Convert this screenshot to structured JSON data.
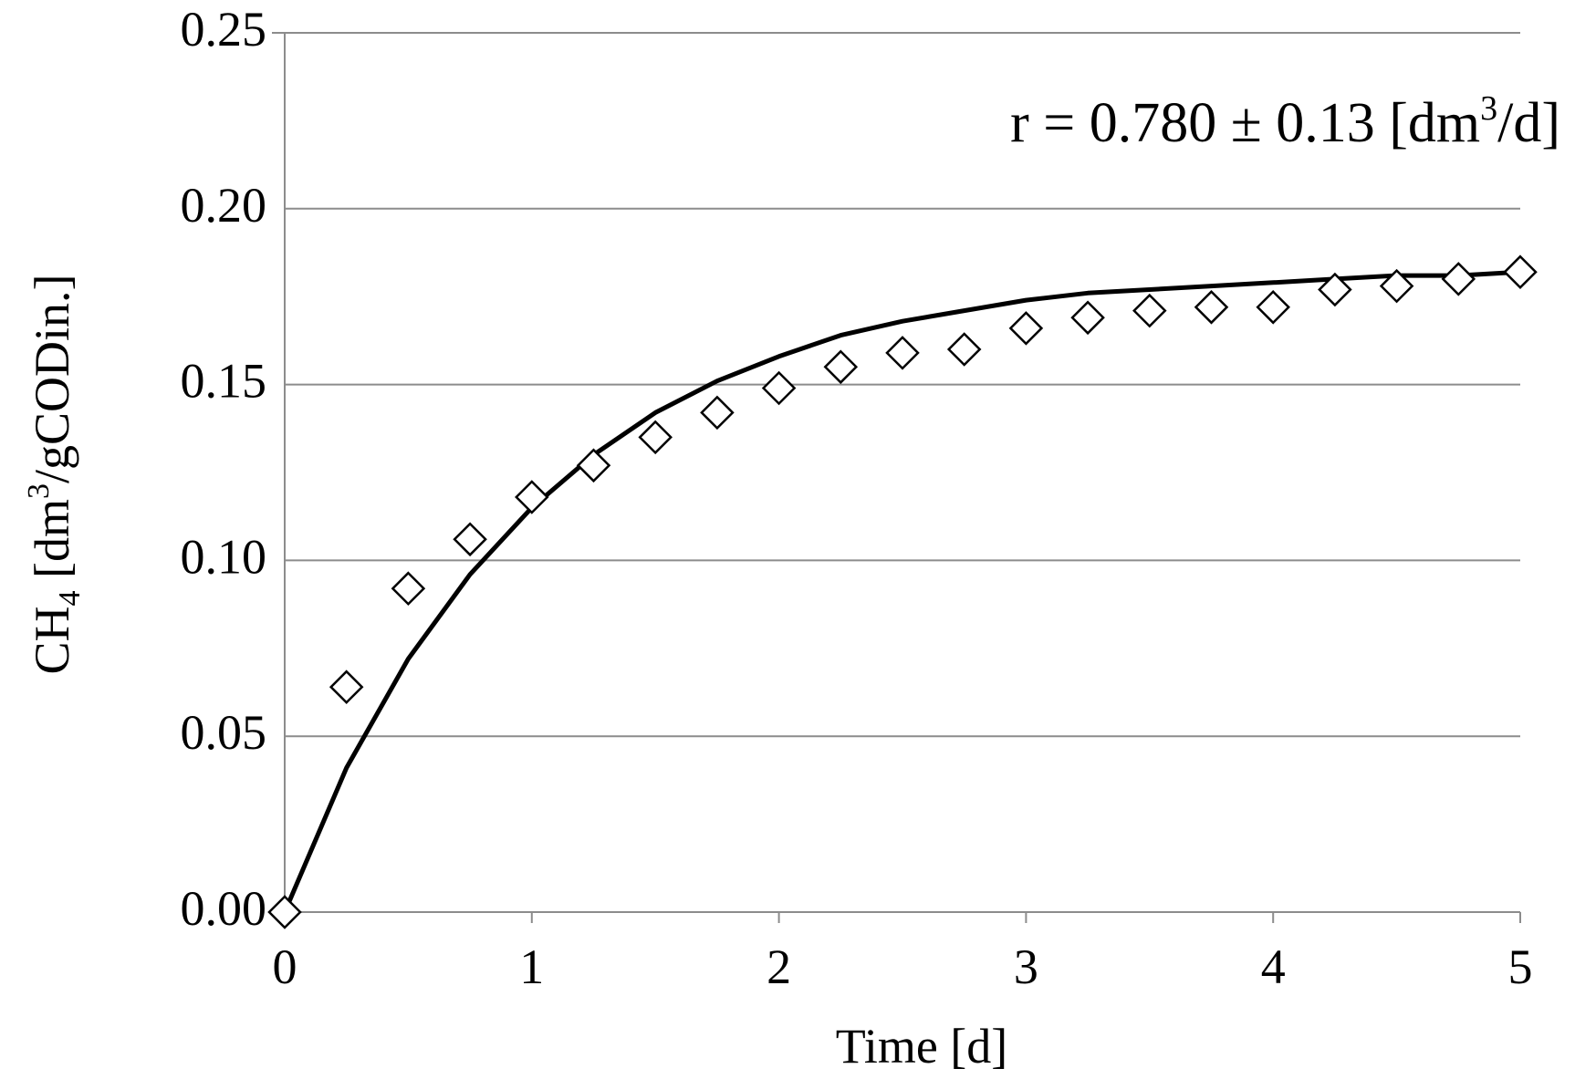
{
  "chart_data": {
    "type": "scatter",
    "xlim": [
      0,
      5
    ],
    "ylim": [
      0,
      0.25
    ],
    "x_ticks": [
      "0",
      "1",
      "2",
      "3",
      "4",
      "5"
    ],
    "x_tick_values": [
      0,
      1,
      2,
      3,
      4,
      5
    ],
    "y_ticks": [
      "0.00",
      "0.05",
      "0.10",
      "0.15",
      "0.20",
      "0.25"
    ],
    "y_tick_values": [
      0,
      0.05,
      0.1,
      0.15,
      0.2,
      0.25
    ],
    "xlabel": "Time [d]",
    "ylabel": {
      "prefix": "CH",
      "subscript": "4",
      "middle": " [dm",
      "superscript": "3",
      "suffix": "/gCODin.]"
    },
    "annotation": {
      "prefix": "r = 0.780 ± 0.13 [dm",
      "superscript": "3",
      "suffix": "/d]"
    },
    "grid": "horizontal",
    "colors": {
      "grid": "#8c8c8c",
      "line": "#000000",
      "marker_stroke": "#000000",
      "marker_fill": "#ffffff"
    },
    "series": [
      {
        "kind": "points",
        "marker": "diamond",
        "x": [
          0,
          0.25,
          0.5,
          0.75,
          1.0,
          1.25,
          1.5,
          1.75,
          2.0,
          2.25,
          2.5,
          2.75,
          3.0,
          3.25,
          3.5,
          3.75,
          4.0,
          4.25,
          4.5,
          4.75,
          5.0
        ],
        "y": [
          0.0,
          0.064,
          0.092,
          0.106,
          0.118,
          0.127,
          0.135,
          0.142,
          0.149,
          0.155,
          0.159,
          0.16,
          0.166,
          0.169,
          0.171,
          0.172,
          0.172,
          0.177,
          0.178,
          0.18,
          0.182
        ]
      },
      {
        "kind": "line",
        "x": [
          0,
          0.25,
          0.5,
          0.75,
          1.0,
          1.25,
          1.5,
          1.75,
          2.0,
          2.25,
          2.5,
          2.75,
          3.0,
          3.25,
          3.5,
          3.75,
          4.0,
          4.25,
          4.5,
          4.75,
          5.0
        ],
        "y": [
          0.0,
          0.041,
          0.072,
          0.096,
          0.115,
          0.13,
          0.142,
          0.151,
          0.158,
          0.164,
          0.168,
          0.171,
          0.174,
          0.176,
          0.177,
          0.178,
          0.179,
          0.18,
          0.181,
          0.181,
          0.182
        ]
      }
    ]
  }
}
